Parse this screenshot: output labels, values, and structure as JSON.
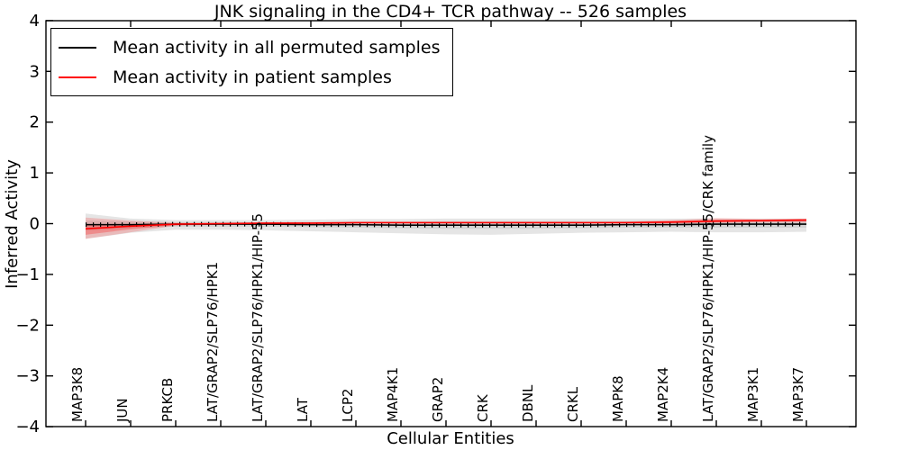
{
  "figure": {
    "title": "JNK signaling in the CD4+ TCR pathway -- 526 samples",
    "xlabel": "Cellular Entities",
    "ylabel": "Inferred Activity"
  },
  "legend": {
    "items": [
      {
        "label": "Mean activity in all permuted samples",
        "color": "#000000"
      },
      {
        "label": "Mean activity in patient samples",
        "color": "#ff0000"
      }
    ]
  },
  "chart_data": {
    "type": "line",
    "title": "JNK signaling in the CD4+ TCR pathway -- 526 samples",
    "xlabel": "Cellular Entities",
    "ylabel": "Inferred Activity",
    "ylim": [
      -4,
      4
    ],
    "yticks": [
      4,
      3,
      2,
      1,
      0,
      -1,
      -2,
      -3,
      -4
    ],
    "ytick_labels": [
      "4",
      "3",
      "2",
      "1",
      "0",
      "−1",
      "−2",
      "−3",
      "−4"
    ],
    "grid": false,
    "legend_position": "upper left",
    "categories": [
      "MAP3K8",
      "JUN",
      "PRKCB",
      "LAT/GRAP2/SLP76/HPK1",
      "LAT/GRAP2/SLP76/HPK1/HIP-55",
      "LAT",
      "LCP2",
      "MAP4K1",
      "GRAP2",
      "CRK",
      "DBNL",
      "CRKL",
      "MAPK8",
      "MAP2K4",
      "LAT/GRAP2/SLP76/HPK1/HIP-55/CRK family",
      "MAP3K1",
      "MAP3K7"
    ],
    "series": [
      {
        "name": "Mean activity in all permuted samples",
        "color": "#000000",
        "tick_markers": true,
        "values": [
          -0.02,
          -0.02,
          -0.01,
          -0.01,
          -0.01,
          -0.02,
          -0.02,
          -0.03,
          -0.03,
          -0.03,
          -0.03,
          -0.03,
          -0.02,
          -0.02,
          -0.01,
          -0.01,
          -0.01
        ],
        "band": {
          "color": "#000000",
          "opacity": 0.1,
          "upper": [
            0.2,
            0.1,
            0.07,
            0.07,
            0.07,
            0.08,
            0.09,
            0.09,
            0.1,
            0.1,
            0.1,
            0.1,
            0.1,
            0.1,
            0.1,
            0.1,
            0.1
          ],
          "lower": [
            -0.3,
            -0.18,
            -0.12,
            -0.12,
            -0.13,
            -0.15,
            -0.17,
            -0.19,
            -0.21,
            -0.22,
            -0.2,
            -0.18,
            -0.17,
            -0.16,
            -0.17,
            -0.17,
            -0.16
          ]
        },
        "inner_band": {
          "color": "#000000",
          "opacity": 0.08,
          "upper": [
            0.06,
            0.04,
            0.03,
            0.03,
            0.03,
            0.04,
            0.04,
            0.04,
            0.05,
            0.05,
            0.05,
            0.05,
            0.05,
            0.05,
            0.05,
            0.05,
            0.05
          ],
          "lower": [
            -0.14,
            -0.09,
            -0.06,
            -0.06,
            -0.06,
            -0.07,
            -0.08,
            -0.09,
            -0.1,
            -0.1,
            -0.1,
            -0.09,
            -0.08,
            -0.08,
            -0.08,
            -0.08,
            -0.08
          ]
        }
      },
      {
        "name": "Mean activity in patient samples",
        "color": "#ff0000",
        "tick_markers": false,
        "values": [
          -0.1,
          -0.05,
          -0.01,
          0.0,
          0.01,
          0.01,
          0.02,
          0.02,
          0.02,
          0.02,
          0.02,
          0.02,
          0.02,
          0.03,
          0.05,
          0.06,
          0.07
        ],
        "band": {
          "color": "#ff0000",
          "opacity": 0.18,
          "upper": [
            0.12,
            0.06,
            0.02,
            0.02,
            0.02,
            0.02,
            0.03,
            0.03,
            0.03,
            0.03,
            0.03,
            0.03,
            0.04,
            0.07,
            0.11,
            0.09,
            0.1
          ],
          "lower": [
            -0.3,
            -0.17,
            -0.04,
            -0.02,
            -0.01,
            -0.01,
            0.0,
            0.0,
            0.0,
            0.0,
            0.0,
            0.0,
            0.0,
            0.0,
            0.01,
            0.02,
            0.02
          ]
        },
        "inner_band": {
          "color": "#ff0000",
          "opacity": 0.25,
          "upper": [
            -0.01,
            -0.01,
            0.0,
            0.01,
            0.02,
            0.02,
            0.03,
            0.03,
            0.03,
            0.03,
            0.03,
            0.03,
            0.03,
            0.05,
            0.08,
            0.08,
            0.09
          ],
          "lower": [
            -0.22,
            -0.11,
            -0.03,
            -0.01,
            0.0,
            0.0,
            0.01,
            0.01,
            0.01,
            0.01,
            0.01,
            0.01,
            0.01,
            0.01,
            0.03,
            0.04,
            0.05
          ]
        }
      }
    ]
  }
}
